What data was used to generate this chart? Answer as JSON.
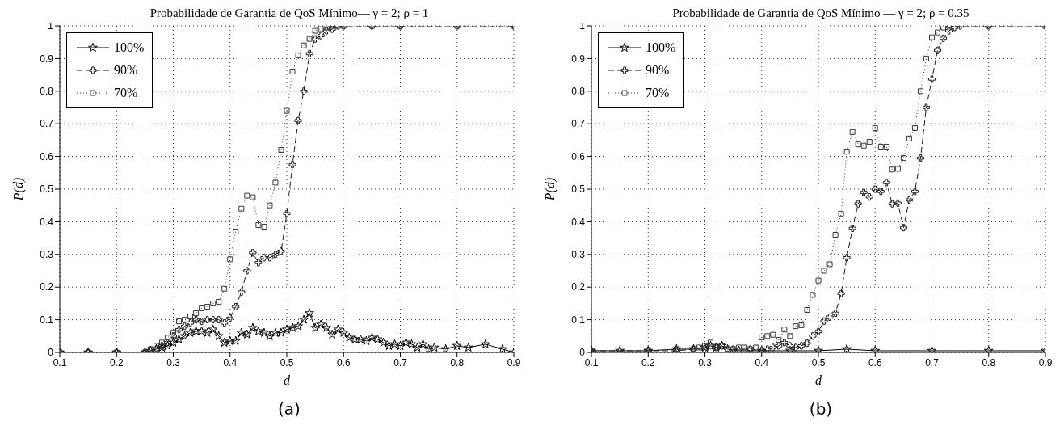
{
  "chart_data": [
    {
      "type": "line",
      "title": "Probabilidade de Garantia de QoS Mínimo— γ = 2; ρ = 1",
      "xlabel": "d",
      "ylabel": "P(d)",
      "annotations": [
        "(a)"
      ],
      "xlim": [
        0.1,
        0.9
      ],
      "xticks": [
        0.1,
        0.2,
        0.3,
        0.4,
        0.5,
        0.6,
        0.7,
        0.8,
        0.9
      ],
      "ylim": [
        0,
        1
      ],
      "yticks": [
        0,
        0.1,
        0.2,
        0.3,
        0.4,
        0.5,
        0.6,
        0.7,
        0.8,
        0.9,
        1
      ],
      "grid": true,
      "legend": "top left",
      "series": [
        {
          "name": "100%",
          "color": "#000000",
          "marker": "star",
          "line_style": "solid",
          "x": [
            0.1,
            0.15,
            0.2,
            0.25,
            0.26,
            0.27,
            0.28,
            0.29,
            0.3,
            0.31,
            0.32,
            0.33,
            0.34,
            0.35,
            0.36,
            0.37,
            0.38,
            0.39,
            0.4,
            0.41,
            0.42,
            0.43,
            0.44,
            0.45,
            0.46,
            0.47,
            0.48,
            0.49,
            0.5,
            0.51,
            0.52,
            0.53,
            0.54,
            0.55,
            0.56,
            0.57,
            0.58,
            0.59,
            0.6,
            0.61,
            0.62,
            0.63,
            0.64,
            0.65,
            0.66,
            0.67,
            0.68,
            0.69,
            0.7,
            0.71,
            0.72,
            0.73,
            0.74,
            0.75,
            0.76,
            0.78,
            0.8,
            0.82,
            0.85,
            0.88,
            0.9
          ],
          "values": [
            0,
            0,
            0,
            0,
            0.005,
            0.01,
            0.015,
            0.02,
            0.03,
            0.04,
            0.05,
            0.06,
            0.065,
            0.065,
            0.06,
            0.07,
            0.05,
            0.03,
            0.035,
            0.035,
            0.06,
            0.055,
            0.075,
            0.065,
            0.06,
            0.05,
            0.06,
            0.06,
            0.07,
            0.075,
            0.08,
            0.1,
            0.12,
            0.075,
            0.085,
            0.075,
            0.055,
            0.07,
            0.06,
            0.045,
            0.04,
            0.04,
            0.035,
            0.045,
            0.04,
            0.03,
            0.02,
            0.025,
            0.02,
            0.03,
            0.025,
            0.015,
            0.025,
            0.01,
            0.015,
            0.01,
            0.02,
            0.015,
            0.025,
            0.01,
            0
          ]
        },
        {
          "name": "90%",
          "color": "#1c1c1c",
          "marker": "cross",
          "line_style": "dashed",
          "x": [
            0.1,
            0.15,
            0.2,
            0.25,
            0.26,
            0.27,
            0.28,
            0.29,
            0.3,
            0.31,
            0.32,
            0.33,
            0.34,
            0.35,
            0.36,
            0.37,
            0.38,
            0.39,
            0.4,
            0.41,
            0.42,
            0.43,
            0.44,
            0.45,
            0.46,
            0.47,
            0.48,
            0.49,
            0.5,
            0.51,
            0.52,
            0.53,
            0.54,
            0.55,
            0.56,
            0.57,
            0.58,
            0.59,
            0.6,
            0.65,
            0.7,
            0.8,
            0.9
          ],
          "values": [
            0,
            0,
            0,
            0,
            0.005,
            0.01,
            0.02,
            0.03,
            0.05,
            0.07,
            0.08,
            0.09,
            0.1,
            0.095,
            0.1,
            0.1,
            0.1,
            0.09,
            0.105,
            0.14,
            0.185,
            0.25,
            0.305,
            0.275,
            0.29,
            0.29,
            0.3,
            0.31,
            0.425,
            0.575,
            0.71,
            0.8,
            0.915,
            0.96,
            0.97,
            0.985,
            0.99,
            1,
            1,
            1,
            1,
            1,
            1
          ]
        },
        {
          "name": "70%",
          "color": "#383838",
          "marker": "square",
          "line_style": "dotted",
          "x": [
            0.1,
            0.15,
            0.2,
            0.25,
            0.26,
            0.27,
            0.28,
            0.29,
            0.3,
            0.31,
            0.32,
            0.33,
            0.34,
            0.35,
            0.36,
            0.37,
            0.38,
            0.39,
            0.4,
            0.41,
            0.42,
            0.43,
            0.44,
            0.45,
            0.46,
            0.47,
            0.48,
            0.49,
            0.5,
            0.51,
            0.52,
            0.53,
            0.54,
            0.55,
            0.56,
            0.57,
            0.58,
            0.59,
            0.6,
            0.65,
            0.7,
            0.8,
            0.9
          ],
          "values": [
            0,
            0,
            0,
            0,
            0.01,
            0.02,
            0.03,
            0.045,
            0.06,
            0.095,
            0.1,
            0.11,
            0.12,
            0.135,
            0.14,
            0.15,
            0.155,
            0.195,
            0.285,
            0.37,
            0.44,
            0.48,
            0.475,
            0.39,
            0.385,
            0.45,
            0.52,
            0.62,
            0.74,
            0.86,
            0.91,
            0.94,
            0.96,
            0.985,
            0.99,
            0.995,
            1,
            1,
            1,
            1,
            1,
            1,
            1
          ]
        }
      ]
    },
    {
      "type": "line",
      "title": "Probabilidade de Garantia de QoS Mínimo — γ = 2; ρ = 0.35",
      "xlabel": "d",
      "ylabel": "P(d)",
      "annotations": [
        "(b)"
      ],
      "xlim": [
        0.1,
        0.9
      ],
      "xticks": [
        0.1,
        0.2,
        0.3,
        0.4,
        0.5,
        0.6,
        0.7,
        0.8,
        0.9
      ],
      "ylim": [
        0,
        1
      ],
      "yticks": [
        0,
        0.1,
        0.2,
        0.3,
        0.4,
        0.5,
        0.6,
        0.7,
        0.8,
        0.9,
        1
      ],
      "grid": true,
      "legend": "top left",
      "series": [
        {
          "name": "100%",
          "color": "#000000",
          "marker": "star",
          "line_style": "solid",
          "x": [
            0.1,
            0.15,
            0.2,
            0.25,
            0.28,
            0.3,
            0.31,
            0.32,
            0.33,
            0.34,
            0.36,
            0.4,
            0.45,
            0.5,
            0.55,
            0.6,
            0.7,
            0.8,
            0.9
          ],
          "values": [
            0.005,
            0.005,
            0.005,
            0.01,
            0.01,
            0.015,
            0.02,
            0.015,
            0.02,
            0.01,
            0.005,
            0.005,
            0.005,
            0.005,
            0.01,
            0.005,
            0.005,
            0.005,
            0.005
          ]
        },
        {
          "name": "90%",
          "color": "#1c1c1c",
          "marker": "cross",
          "line_style": "dashed",
          "x": [
            0.1,
            0.2,
            0.25,
            0.28,
            0.3,
            0.32,
            0.33,
            0.35,
            0.38,
            0.4,
            0.41,
            0.42,
            0.43,
            0.44,
            0.45,
            0.46,
            0.47,
            0.48,
            0.49,
            0.5,
            0.51,
            0.52,
            0.53,
            0.54,
            0.55,
            0.56,
            0.57,
            0.58,
            0.59,
            0.6,
            0.61,
            0.62,
            0.63,
            0.64,
            0.65,
            0.66,
            0.67,
            0.68,
            0.69,
            0.7,
            0.71,
            0.72,
            0.73,
            0.74,
            0.75,
            0.8,
            0.9
          ],
          "values": [
            0.005,
            0.005,
            0.005,
            0.01,
            0.01,
            0.015,
            0.02,
            0.01,
            0.01,
            0.005,
            0.01,
            0.015,
            0.02,
            0.03,
            0.02,
            0.015,
            0.02,
            0.028,
            0.05,
            0.064,
            0.096,
            0.108,
            0.12,
            0.18,
            0.29,
            0.38,
            0.455,
            0.49,
            0.476,
            0.5,
            0.493,
            0.52,
            0.455,
            0.457,
            0.382,
            0.467,
            0.493,
            0.595,
            0.75,
            0.837,
            0.925,
            0.962,
            0.985,
            0.995,
            1,
            1,
            1
          ]
        },
        {
          "name": "70%",
          "color": "#383838",
          "marker": "square",
          "line_style": "dotted",
          "x": [
            0.1,
            0.2,
            0.25,
            0.28,
            0.29,
            0.3,
            0.31,
            0.32,
            0.33,
            0.34,
            0.35,
            0.36,
            0.37,
            0.38,
            0.39,
            0.4,
            0.41,
            0.42,
            0.43,
            0.44,
            0.45,
            0.46,
            0.47,
            0.48,
            0.49,
            0.5,
            0.51,
            0.52,
            0.53,
            0.54,
            0.55,
            0.56,
            0.57,
            0.58,
            0.59,
            0.6,
            0.61,
            0.62,
            0.63,
            0.64,
            0.65,
            0.66,
            0.67,
            0.68,
            0.69,
            0.7,
            0.71,
            0.72,
            0.73,
            0.8,
            0.9
          ],
          "values": [
            0.005,
            0.005,
            0.01,
            0.01,
            0.015,
            0.02,
            0.03,
            0.015,
            0.02,
            0.01,
            0.01,
            0.015,
            0.015,
            0.01,
            0.015,
            0.046,
            0.05,
            0.054,
            0.038,
            0.07,
            0.05,
            0.08,
            0.083,
            0.13,
            0.176,
            0.22,
            0.25,
            0.27,
            0.36,
            0.425,
            0.615,
            0.675,
            0.637,
            0.633,
            0.645,
            0.687,
            0.63,
            0.63,
            0.56,
            0.562,
            0.595,
            0.655,
            0.687,
            0.8,
            0.9,
            0.965,
            0.98,
            0.995,
            1,
            1,
            1
          ]
        }
      ]
    }
  ]
}
